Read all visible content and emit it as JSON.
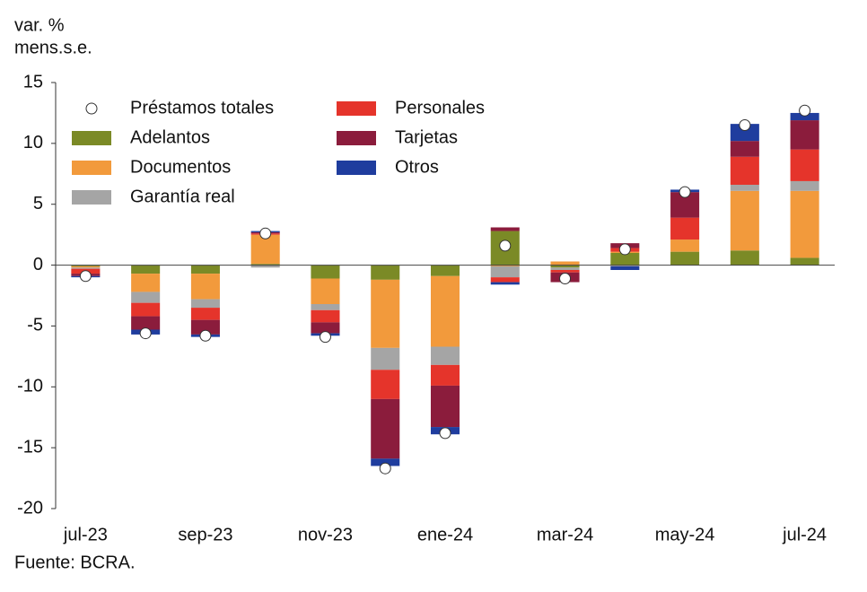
{
  "chart_data": {
    "type": "bar",
    "stacked": true,
    "y_label_lines": [
      "var. %",
      "mens.s.e."
    ],
    "source": "Fuente: BCRA.",
    "categories": [
      "jul-23",
      null,
      "sep-23",
      null,
      "nov-23",
      null,
      "ene-24",
      null,
      "mar-24",
      null,
      "may-24",
      null,
      "jul-24"
    ],
    "ylim": [
      -20,
      15
    ],
    "yticks": [
      15,
      10,
      5,
      0,
      -5,
      -10,
      -15,
      -20
    ],
    "grid": false,
    "series": [
      {
        "name": "Préstamos totales",
        "type": "scatter",
        "color": "#ffffff",
        "values": [
          -0.9,
          -5.6,
          -5.8,
          2.6,
          -5.9,
          -16.7,
          -13.8,
          1.6,
          -1.1,
          1.3,
          6.0,
          11.5,
          12.7
        ]
      },
      {
        "name": "Adelantos",
        "color": "#7b8a26",
        "values": [
          -0.1,
          -0.7,
          -0.7,
          0.1,
          -1.1,
          -1.2,
          -0.9,
          2.8,
          -0.2,
          1.0,
          1.1,
          1.2,
          0.6
        ]
      },
      {
        "name": "Documentos",
        "color": "#f29a3c",
        "values": [
          -0.1,
          -1.5,
          -2.1,
          2.4,
          -2.1,
          -5.6,
          -5.8,
          -0.1,
          0.3,
          0.1,
          1.0,
          4.9,
          5.5
        ]
      },
      {
        "name": "Garantía real",
        "color": "#a5a5a5",
        "values": [
          -0.1,
          -0.9,
          -0.7,
          -0.2,
          -0.5,
          -1.8,
          -1.5,
          -0.9,
          -0.2,
          -0.1,
          0.0,
          0.5,
          0.8
        ]
      },
      {
        "name": "Personales",
        "color": "#e5342b",
        "values": [
          -0.4,
          -1.1,
          -1.0,
          0.1,
          -1.0,
          -2.4,
          -1.7,
          -0.4,
          -0.2,
          0.3,
          1.8,
          2.3,
          2.6
        ]
      },
      {
        "name": "Tarjetas",
        "color": "#8b1c3c",
        "values": [
          -0.2,
          -1.1,
          -1.2,
          0.1,
          -0.9,
          -4.9,
          -3.4,
          0.3,
          -0.8,
          0.4,
          2.1,
          1.3,
          2.4
        ]
      },
      {
        "name": "Otros",
        "color": "#1f3d9e",
        "values": [
          -0.1,
          -0.4,
          -0.2,
          0.1,
          -0.2,
          -0.6,
          -0.6,
          -0.2,
          0.0,
          -0.3,
          0.2,
          1.4,
          0.6
        ]
      }
    ]
  }
}
